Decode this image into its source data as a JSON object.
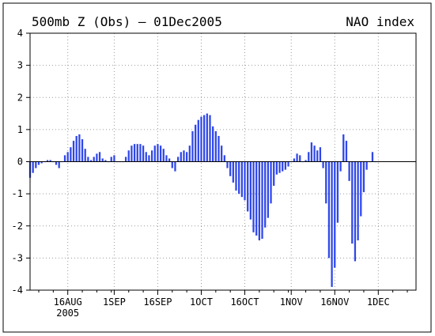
{
  "chart_data": {
    "type": "bar",
    "title": "500mb Z (Obs) — 01Dec2005",
    "title_right": "NAO index",
    "ylim": [
      -4,
      4
    ],
    "yticks": [
      -4,
      -3,
      -2,
      -1,
      0,
      1,
      2,
      3,
      4
    ],
    "grid": true,
    "bar_color": "#2f47e8",
    "x_start": "2005-08-03",
    "x_end": "2005-12-14",
    "xticks": [
      {
        "date": "2005-08-16",
        "label": "16AUG",
        "sublabel": "2005"
      },
      {
        "date": "2005-09-01",
        "label": "1SEP"
      },
      {
        "date": "2005-09-16",
        "label": "16SEP"
      },
      {
        "date": "2005-10-01",
        "label": "1OCT"
      },
      {
        "date": "2005-10-16",
        "label": "16OCT"
      },
      {
        "date": "2005-11-01",
        "label": "1NOV"
      },
      {
        "date": "2005-11-16",
        "label": "16NOV"
      },
      {
        "date": "2005-12-01",
        "label": "1DEC"
      }
    ],
    "series": [
      {
        "x": [
          "2005-08-03",
          "2005-08-04",
          "2005-08-05",
          "2005-08-06",
          "2005-08-07",
          "2005-08-08",
          "2005-08-09",
          "2005-08-10",
          "2005-08-11",
          "2005-08-12",
          "2005-08-13",
          "2005-08-14",
          "2005-08-15",
          "2005-08-16",
          "2005-08-17",
          "2005-08-18",
          "2005-08-19",
          "2005-08-20",
          "2005-08-21",
          "2005-08-22",
          "2005-08-23",
          "2005-08-24",
          "2005-08-25",
          "2005-08-26",
          "2005-08-27",
          "2005-08-28",
          "2005-08-29",
          "2005-08-30",
          "2005-08-31",
          "2005-09-01",
          "2005-09-02",
          "2005-09-03",
          "2005-09-04",
          "2005-09-05",
          "2005-09-06",
          "2005-09-07",
          "2005-09-08",
          "2005-09-09",
          "2005-09-10",
          "2005-09-11",
          "2005-09-12",
          "2005-09-13",
          "2005-09-14",
          "2005-09-15",
          "2005-09-16",
          "2005-09-17",
          "2005-09-18",
          "2005-09-19",
          "2005-09-20",
          "2005-09-21",
          "2005-09-22",
          "2005-09-23",
          "2005-09-24",
          "2005-09-25",
          "2005-09-26",
          "2005-09-27",
          "2005-09-28",
          "2005-09-29",
          "2005-09-30",
          "2005-10-01",
          "2005-10-02",
          "2005-10-03",
          "2005-10-04",
          "2005-10-05",
          "2005-10-06",
          "2005-10-07",
          "2005-10-08",
          "2005-10-09",
          "2005-10-10",
          "2005-10-11",
          "2005-10-12",
          "2005-10-13",
          "2005-10-14",
          "2005-10-15",
          "2005-10-16",
          "2005-10-17",
          "2005-10-18",
          "2005-10-19",
          "2005-10-20",
          "2005-10-21",
          "2005-10-22",
          "2005-10-23",
          "2005-10-24",
          "2005-10-25",
          "2005-10-26",
          "2005-10-27",
          "2005-10-28",
          "2005-10-29",
          "2005-10-30",
          "2005-10-31",
          "2005-11-01",
          "2005-11-02",
          "2005-11-03",
          "2005-11-04",
          "2005-11-05",
          "2005-11-06",
          "2005-11-07",
          "2005-11-08",
          "2005-11-09",
          "2005-11-10",
          "2005-11-11",
          "2005-11-12",
          "2005-11-13",
          "2005-11-14",
          "2005-11-15",
          "2005-11-16",
          "2005-11-17",
          "2005-11-18",
          "2005-11-19",
          "2005-11-20",
          "2005-11-21",
          "2005-11-22",
          "2005-11-23",
          "2005-11-24",
          "2005-11-25",
          "2005-11-26",
          "2005-11-27",
          "2005-11-28",
          "2005-11-29",
          "2005-11-30",
          "2005-12-01"
        ],
        "values": [
          -0.5,
          -0.35,
          -0.2,
          -0.1,
          -0.05,
          0.0,
          0.05,
          0.05,
          0.0,
          -0.1,
          -0.2,
          0.0,
          0.2,
          0.3,
          0.45,
          0.65,
          0.8,
          0.85,
          0.7,
          0.4,
          0.15,
          0.05,
          0.15,
          0.25,
          0.3,
          0.1,
          0.05,
          0.0,
          0.15,
          0.2,
          0.0,
          0.0,
          0.0,
          0.15,
          0.35,
          0.5,
          0.55,
          0.55,
          0.55,
          0.5,
          0.3,
          0.2,
          0.35,
          0.5,
          0.55,
          0.5,
          0.4,
          0.2,
          0.1,
          -0.2,
          -0.3,
          0.15,
          0.3,
          0.35,
          0.3,
          0.5,
          0.95,
          1.15,
          1.3,
          1.4,
          1.45,
          1.5,
          1.45,
          1.1,
          0.95,
          0.8,
          0.5,
          0.2,
          -0.2,
          -0.45,
          -0.65,
          -0.9,
          -1.0,
          -1.1,
          -1.2,
          -1.55,
          -1.8,
          -2.2,
          -2.3,
          -2.45,
          -2.4,
          -2.05,
          -1.75,
          -1.3,
          -0.75,
          -0.4,
          -0.35,
          -0.3,
          -0.25,
          -0.15,
          0.0,
          0.1,
          0.25,
          0.2,
          0.0,
          0.05,
          0.3,
          0.6,
          0.5,
          0.35,
          0.45,
          -0.2,
          -1.3,
          -3.0,
          -3.9,
          -3.3,
          -1.9,
          -0.3,
          0.85,
          0.65,
          -0.6,
          -2.55,
          -3.1,
          -2.45,
          -1.7,
          -0.95,
          -0.25,
          0.0,
          0.3,
          0.0,
          0.0
        ]
      }
    ]
  }
}
